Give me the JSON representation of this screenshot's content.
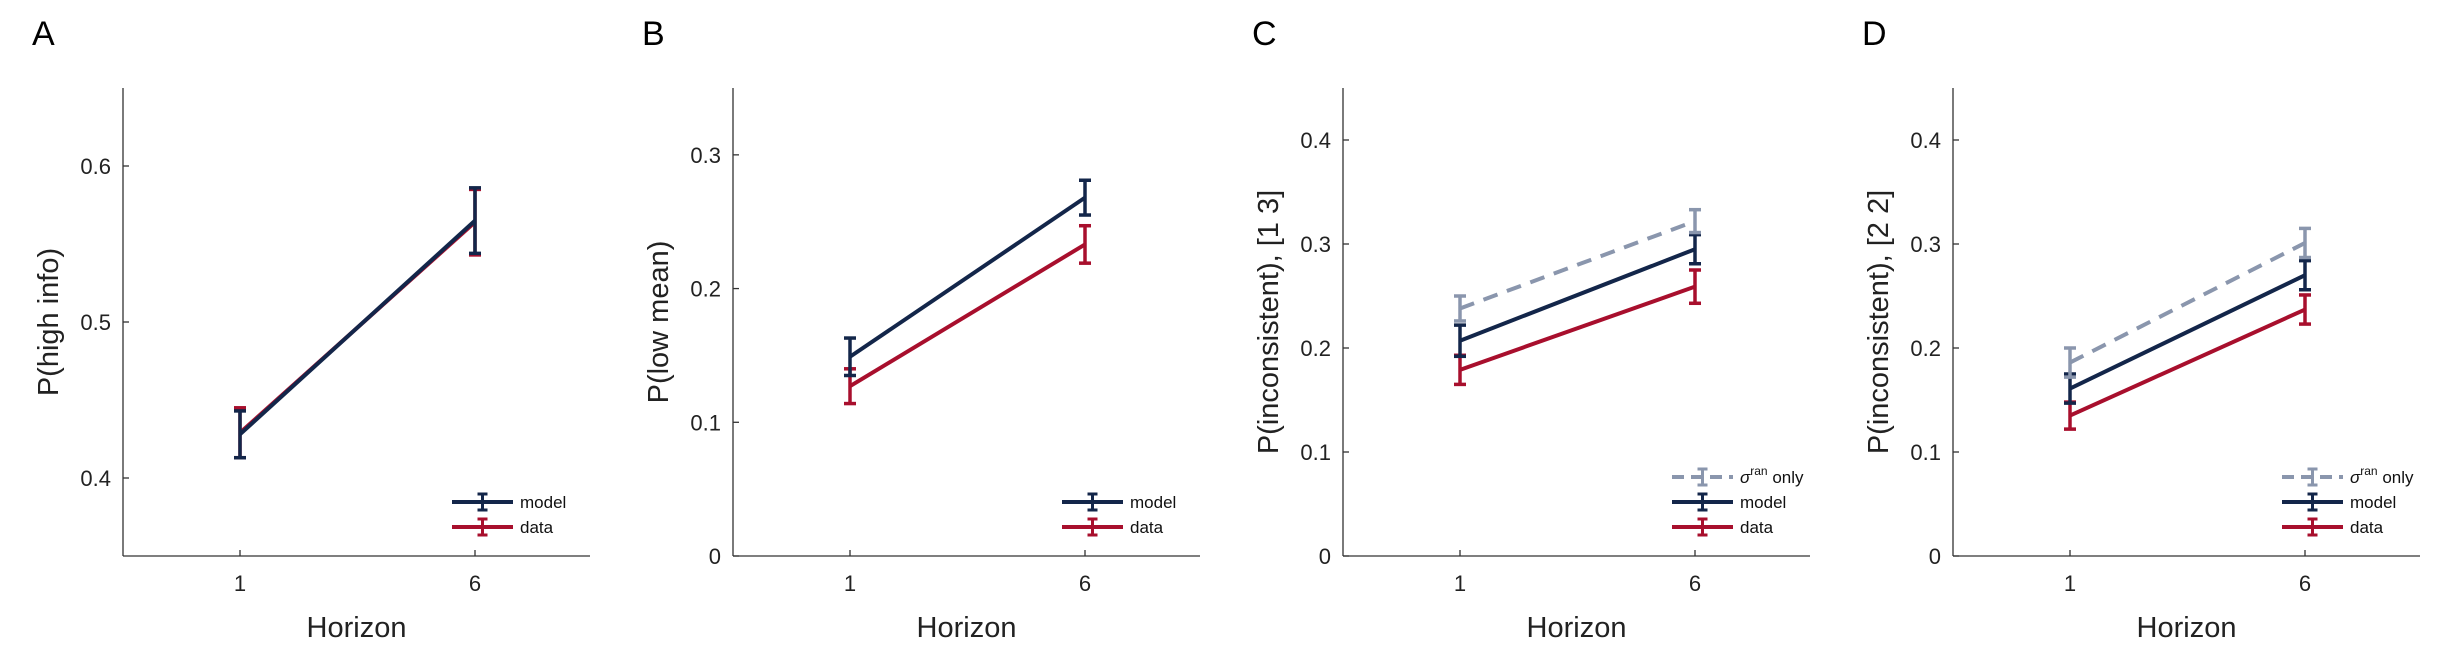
{
  "colors": {
    "model": "#13264a",
    "data": "#a80f2d",
    "sigma_only": "#8a96ad",
    "axis": "#333333"
  },
  "chart_data": [
    {
      "panel": "A",
      "type": "line",
      "xlabel": "Horizon",
      "ylabel": "P(high info)",
      "categories": [
        "1",
        "6"
      ],
      "ylim": [
        0.35,
        0.65
      ],
      "yticks": [
        0.4,
        0.5,
        0.6
      ],
      "ytick_labels": [
        "0.4",
        "0.5",
        "0.6"
      ],
      "grid": false,
      "legend_position": "bottom-right",
      "series": [
        {
          "name": "model",
          "key": "model",
          "dashed": false,
          "values": [
            0.428,
            0.565
          ],
          "err": [
            0.015,
            0.021
          ]
        },
        {
          "name": "data",
          "key": "data",
          "dashed": false,
          "values": [
            0.429,
            0.564
          ],
          "err": [
            0.016,
            0.021
          ]
        }
      ]
    },
    {
      "panel": "B",
      "type": "line",
      "xlabel": "Horizon",
      "ylabel": "P(low mean)",
      "categories": [
        "1",
        "6"
      ],
      "ylim": [
        0,
        0.35
      ],
      "yticks": [
        0,
        0.1,
        0.2,
        0.3
      ],
      "ytick_labels": [
        "0",
        "0.1",
        "0.2",
        "0.3"
      ],
      "grid": false,
      "legend_position": "bottom-right",
      "series": [
        {
          "name": "model",
          "key": "model",
          "dashed": false,
          "values": [
            0.149,
            0.268
          ],
          "err": [
            0.014,
            0.013
          ]
        },
        {
          "name": "data",
          "key": "data",
          "dashed": false,
          "values": [
            0.127,
            0.233
          ],
          "err": [
            0.013,
            0.014
          ]
        }
      ]
    },
    {
      "panel": "C",
      "type": "line",
      "xlabel": "Horizon",
      "ylabel": "P(inconsistent), [1 3]",
      "categories": [
        "1",
        "6"
      ],
      "ylim": [
        0,
        0.45
      ],
      "yticks": [
        0,
        0.1,
        0.2,
        0.3,
        0.4
      ],
      "ytick_labels": [
        "0",
        "0.1",
        "0.2",
        "0.3",
        "0.4"
      ],
      "grid": false,
      "legend_position": "bottom-right",
      "series": [
        {
          "name": "σ",
          "name_sup": "ran",
          "name_suffix": " only",
          "key": "sigma_only",
          "dashed": true,
          "values": [
            0.238,
            0.322
          ],
          "err": [
            0.012,
            0.011
          ]
        },
        {
          "name": "model",
          "key": "model",
          "dashed": false,
          "values": [
            0.207,
            0.295
          ],
          "err": [
            0.015,
            0.014
          ]
        },
        {
          "name": "data",
          "key": "data",
          "dashed": false,
          "values": [
            0.179,
            0.259
          ],
          "err": [
            0.014,
            0.016
          ]
        }
      ]
    },
    {
      "panel": "D",
      "type": "line",
      "xlabel": "Horizon",
      "ylabel": "P(inconsistent), [2 2]",
      "categories": [
        "1",
        "6"
      ],
      "ylim": [
        0,
        0.45
      ],
      "yticks": [
        0,
        0.1,
        0.2,
        0.3,
        0.4
      ],
      "ytick_labels": [
        "0",
        "0.1",
        "0.2",
        "0.3",
        "0.4"
      ],
      "grid": false,
      "legend_position": "bottom-right",
      "series": [
        {
          "name": "σ",
          "name_sup": "ran",
          "name_suffix": " only",
          "key": "sigma_only",
          "dashed": true,
          "values": [
            0.186,
            0.301
          ],
          "err": [
            0.014,
            0.014
          ]
        },
        {
          "name": "model",
          "key": "model",
          "dashed": false,
          "values": [
            0.161,
            0.27
          ],
          "err": [
            0.014,
            0.014
          ]
        },
        {
          "name": "data",
          "key": "data",
          "dashed": false,
          "values": [
            0.135,
            0.237
          ],
          "err": [
            0.013,
            0.014
          ]
        }
      ]
    }
  ]
}
